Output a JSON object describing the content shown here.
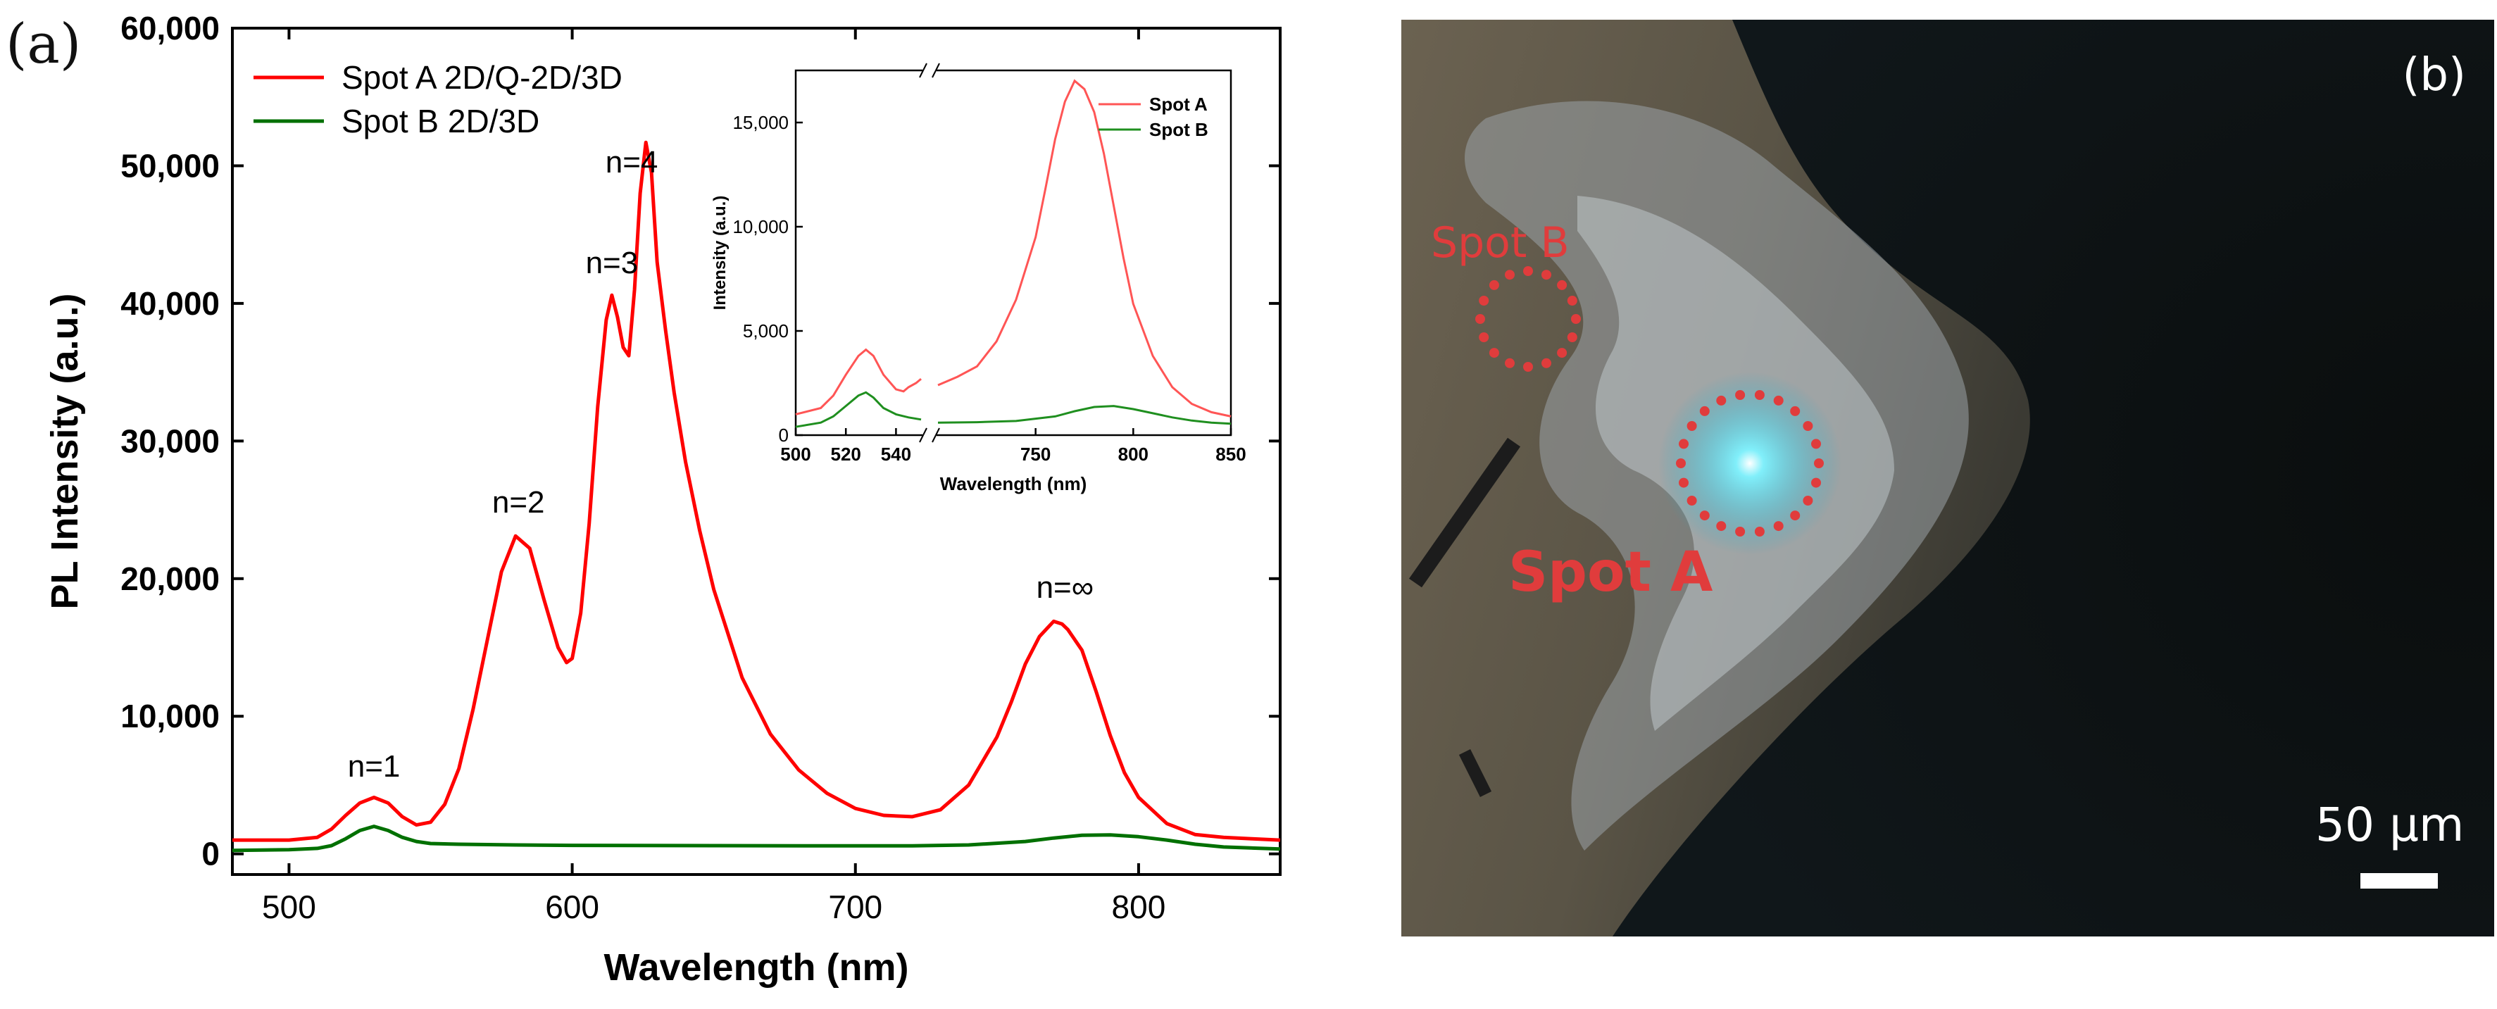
{
  "panel_a_label": "(a)",
  "panel_b_label": "(b)",
  "chart_data": [
    {
      "type": "line",
      "xlabel": "Wavelength (nm)",
      "ylabel": "PL Intensity (a.u.)",
      "xlim": [
        480,
        850
      ],
      "ylim": [
        -1500,
        60000
      ],
      "xticks": [
        500,
        600,
        700,
        800
      ],
      "yticks": [
        0,
        10000,
        20000,
        30000,
        40000,
        50000,
        60000
      ],
      "ytick_labels": [
        "0",
        "10,000",
        "20,000",
        "30,000",
        "40,000",
        "50,000",
        "60,000"
      ],
      "legend_position": "top-left",
      "series": [
        {
          "name": "Spot A 2D/Q-2D/3D",
          "color": "#ff0000",
          "x": [
            480,
            500,
            510,
            515,
            520,
            525,
            530,
            535,
            540,
            545,
            550,
            555,
            560,
            565,
            570,
            575,
            580,
            585,
            590,
            595,
            598,
            600,
            603,
            606,
            609,
            612,
            614,
            616,
            618,
            620,
            622,
            624,
            626,
            628,
            630,
            633,
            636,
            640,
            645,
            650,
            660,
            670,
            680,
            690,
            700,
            710,
            720,
            730,
            740,
            750,
            755,
            760,
            765,
            770,
            773,
            775,
            780,
            785,
            790,
            795,
            800,
            810,
            820,
            830,
            840,
            850
          ],
          "y": [
            1000,
            1000,
            1200,
            1800,
            2800,
            3700,
            4100,
            3700,
            2700,
            2100,
            2300,
            3600,
            6200,
            10500,
            15500,
            20500,
            23100,
            22200,
            18500,
            15000,
            13900,
            14200,
            17500,
            24000,
            32500,
            38800,
            40600,
            39000,
            36800,
            36200,
            41000,
            48000,
            51700,
            49500,
            43000,
            38000,
            33500,
            28500,
            23500,
            19200,
            12800,
            8700,
            6100,
            4400,
            3300,
            2800,
            2700,
            3200,
            5000,
            8500,
            11000,
            13800,
            15800,
            16900,
            16700,
            16300,
            14800,
            11800,
            8600,
            5900,
            4100,
            2200,
            1400,
            1200,
            1100,
            1000
          ]
        },
        {
          "name": "Spot B 2D/3D",
          "color": "#007000",
          "x": [
            480,
            500,
            510,
            515,
            520,
            525,
            530,
            535,
            540,
            545,
            550,
            560,
            580,
            600,
            650,
            700,
            720,
            740,
            760,
            770,
            780,
            790,
            800,
            810,
            820,
            830,
            850
          ],
          "y": [
            250,
            300,
            400,
            600,
            1100,
            1700,
            2000,
            1700,
            1200,
            900,
            750,
            700,
            650,
            620,
            600,
            580,
            590,
            650,
            900,
            1150,
            1350,
            1380,
            1250,
            1000,
            700,
            500,
            350
          ]
        }
      ],
      "annotations": [
        {
          "text": "n=1",
          "x": 530,
          "y": 5600
        },
        {
          "text": "n=2",
          "x": 581,
          "y": 24800
        },
        {
          "text": "n=3",
          "x": 614,
          "y": 42200
        },
        {
          "text": "n=4",
          "x": 621,
          "y": 49500
        },
        {
          "text": "n=∞",
          "x": 774,
          "y": 18600
        }
      ]
    },
    {
      "type": "line",
      "xlabel": "Wavelength (nm)",
      "ylabel": "Intensity (a.u.)",
      "xlim": [
        500,
        850
      ],
      "ylim": [
        0,
        17500
      ],
      "axis_break": true,
      "xticks": [
        500,
        520,
        540,
        750,
        800,
        850
      ],
      "yticks": [
        0,
        5000,
        10000,
        15000
      ],
      "ytick_labels": [
        "0",
        "5,000",
        "10,000",
        "15,000"
      ],
      "legend_position": "top-right",
      "series": [
        {
          "name": "Spot A",
          "color": "#ff5555",
          "x": [
            500,
            510,
            515,
            520,
            525,
            528,
            531,
            535,
            540,
            543,
            545,
            548,
            550,
            700,
            710,
            720,
            730,
            740,
            750,
            755,
            760,
            765,
            770,
            775,
            780,
            785,
            790,
            795,
            800,
            810,
            820,
            830,
            840,
            850
          ],
          "y": [
            1000,
            1300,
            1900,
            2900,
            3800,
            4100,
            3800,
            2900,
            2200,
            2100,
            2300,
            2500,
            2700,
            2400,
            2800,
            3300,
            4500,
            6500,
            9500,
            11800,
            14200,
            16000,
            17000,
            16600,
            15500,
            13500,
            11000,
            8500,
            6300,
            3800,
            2300,
            1500,
            1100,
            900
          ]
        },
        {
          "name": "Spot B",
          "color": "#1f8f1f",
          "x": [
            500,
            510,
            515,
            520,
            525,
            528,
            531,
            535,
            540,
            545,
            550,
            700,
            720,
            740,
            760,
            770,
            780,
            790,
            800,
            810,
            820,
            830,
            840,
            850
          ],
          "y": [
            400,
            600,
            900,
            1400,
            1900,
            2050,
            1800,
            1300,
            1000,
            850,
            750,
            600,
            620,
            680,
            900,
            1150,
            1350,
            1400,
            1250,
            1050,
            850,
            700,
            600,
            550
          ]
        }
      ]
    }
  ],
  "photo": {
    "spot_b_label": "Spot B",
    "spot_a_label": "Spot A",
    "scale_label": "50 μm",
    "dot_color": "#e03c3c"
  }
}
